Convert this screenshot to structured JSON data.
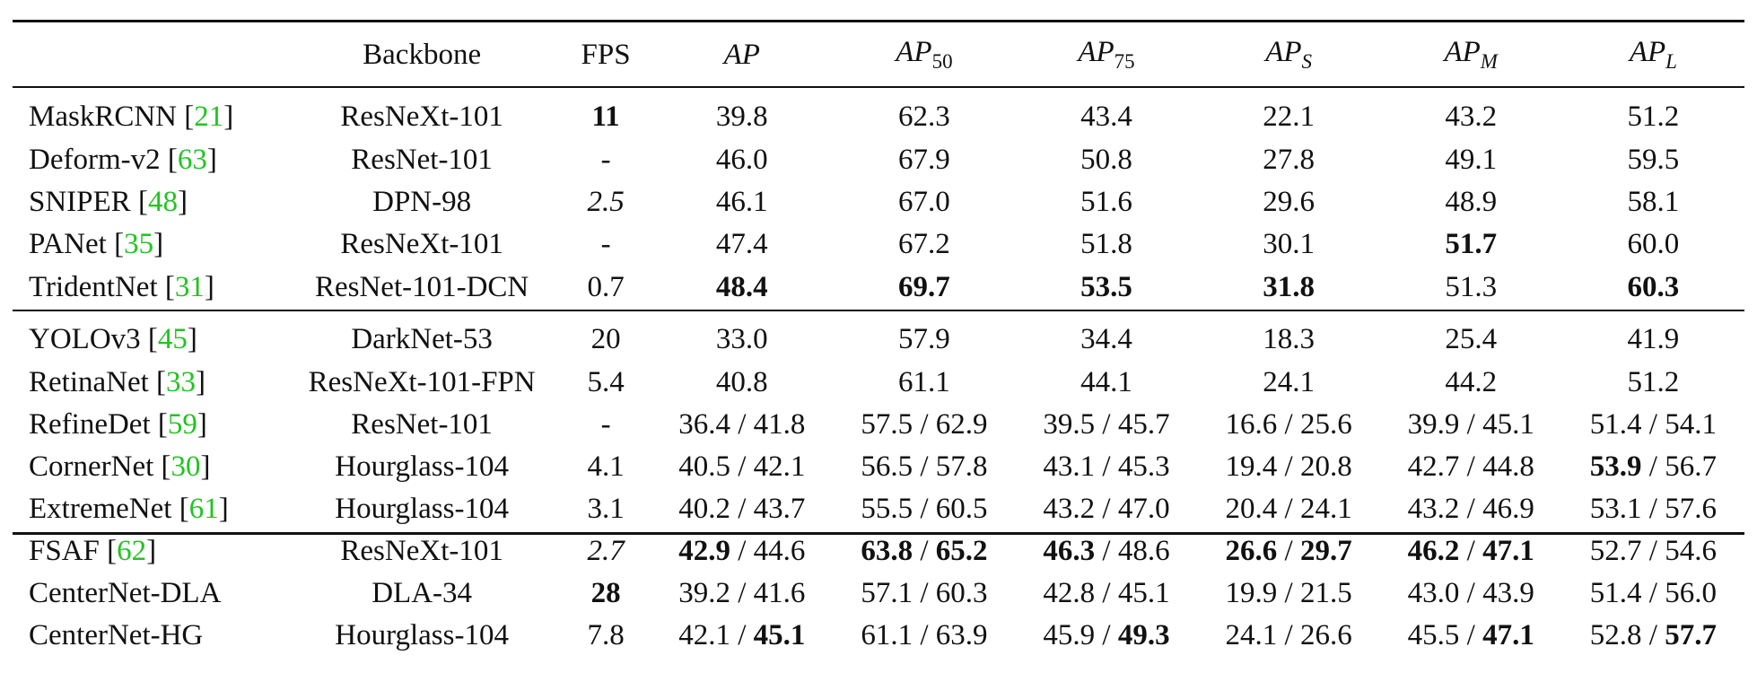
{
  "table": {
    "headers": {
      "method": "",
      "backbone": "Backbone",
      "fps": "FPS",
      "ap_base": "AP",
      "ap50_sub": "50",
      "ap75_sub": "75",
      "aps_sub": "S",
      "apm_sub": "M",
      "apl_sub": "L"
    },
    "rows": [
      {
        "method": "MaskRCNN",
        "cite": "21",
        "backbone": "ResNeXt-101",
        "fps": "11",
        "ap": "39.8",
        "ap50": "62.3",
        "ap75": "43.4",
        "aps": "22.1",
        "apm": "43.2",
        "apl": "51.2"
      },
      {
        "method": "Deform-v2",
        "cite": "63",
        "backbone": "ResNet-101",
        "fps": "-",
        "ap": "46.0",
        "ap50": "67.9",
        "ap75": "50.8",
        "aps": "27.8",
        "apm": "49.1",
        "apl": "59.5"
      },
      {
        "method": "SNIPER",
        "cite": "48",
        "backbone": "DPN-98",
        "fps": "2.5",
        "ap": "46.1",
        "ap50": "67.0",
        "ap75": "51.6",
        "aps": "29.6",
        "apm": "48.9",
        "apl": "58.1"
      },
      {
        "method": "PANet",
        "cite": "35",
        "backbone": "ResNeXt-101",
        "fps": "-",
        "ap": "47.4",
        "ap50": "67.2",
        "ap75": "51.8",
        "aps": "30.1",
        "apm": "51.7",
        "apl": "60.0"
      },
      {
        "method": "TridentNet",
        "cite": "31",
        "backbone": "ResNet-101-DCN",
        "fps": "0.7",
        "ap": "48.4",
        "ap50": "69.7",
        "ap75": "53.5",
        "aps": "31.8",
        "apm": "51.3",
        "apl": "60.3"
      },
      {
        "method": "YOLOv3",
        "cite": "45",
        "backbone": "DarkNet-53",
        "fps": "20",
        "ap": "33.0",
        "ap50": "57.9",
        "ap75": "34.4",
        "aps": "18.3",
        "apm": "25.4",
        "apl": "41.9"
      },
      {
        "method": "RetinaNet",
        "cite": "33",
        "backbone": "ResNeXt-101-FPN",
        "fps": "5.4",
        "ap": "40.8",
        "ap50": "61.1",
        "ap75": "44.1",
        "aps": "24.1",
        "apm": "44.2",
        "apl": "51.2"
      },
      {
        "method": "RefineDet",
        "cite": "59",
        "backbone": "ResNet-101",
        "fps": "-",
        "ap_a": "36.4",
        "ap_b": "41.8",
        "ap50_a": "57.5",
        "ap50_b": "62.9",
        "ap75_a": "39.5",
        "ap75_b": "45.7",
        "aps_a": "16.6",
        "aps_b": "25.6",
        "apm_a": "39.9",
        "apm_b": "45.1",
        "apl_a": "51.4",
        "apl_b": "54.1"
      },
      {
        "method": "CornerNet",
        "cite": "30",
        "backbone": "Hourglass-104",
        "fps": "4.1",
        "ap_a": "40.5",
        "ap_b": "42.1",
        "ap50_a": "56.5",
        "ap50_b": "57.8",
        "ap75_a": "43.1",
        "ap75_b": "45.3",
        "aps_a": "19.4",
        "aps_b": "20.8",
        "apm_a": "42.7",
        "apm_b": "44.8",
        "apl_a": "53.9",
        "apl_b": "56.7"
      },
      {
        "method": "ExtremeNet",
        "cite": "61",
        "backbone": "Hourglass-104",
        "fps": "3.1",
        "ap_a": "40.2",
        "ap_b": "43.7",
        "ap50_a": "55.5",
        "ap50_b": "60.5",
        "ap75_a": "43.2",
        "ap75_b": "47.0",
        "aps_a": "20.4",
        "aps_b": "24.1",
        "apm_a": "43.2",
        "apm_b": "46.9",
        "apl_a": "53.1",
        "apl_b": "57.6"
      },
      {
        "method": "FSAF",
        "cite": "62",
        "backbone": "ResNeXt-101",
        "fps": "2.7",
        "ap_a": "42.9",
        "ap_b": "44.6",
        "ap50_a": "63.8",
        "ap50_b": "65.2",
        "ap75_a": "46.3",
        "ap75_b": "48.6",
        "aps_a": "26.6",
        "aps_b": "29.7",
        "apm_a": "46.2",
        "apm_b": "47.1",
        "apl_a": "52.7",
        "apl_b": "54.6"
      },
      {
        "method": "CenterNet-DLA",
        "backbone": "DLA-34",
        "fps": "28",
        "ap_a": "39.2",
        "ap_b": "41.6",
        "ap50_a": "57.1",
        "ap50_b": "60.3",
        "ap75_a": "42.8",
        "ap75_b": "45.1",
        "aps_a": "19.9",
        "aps_b": "21.5",
        "apm_a": "43.0",
        "apm_b": "43.9",
        "apl_a": "51.4",
        "apl_b": "56.0"
      },
      {
        "method": "CenterNet-HG",
        "backbone": "Hourglass-104",
        "fps": "7.8",
        "ap_a": "42.1",
        "ap_b": "45.1",
        "ap50_a": "61.1",
        "ap50_b": "63.9",
        "ap75_a": "45.9",
        "ap75_b": "49.3",
        "aps_a": "24.1",
        "aps_b": "26.6",
        "apm_a": "45.5",
        "apm_b": "47.1",
        "apl_a": "52.8",
        "apl_b": "57.7"
      }
    ]
  }
}
